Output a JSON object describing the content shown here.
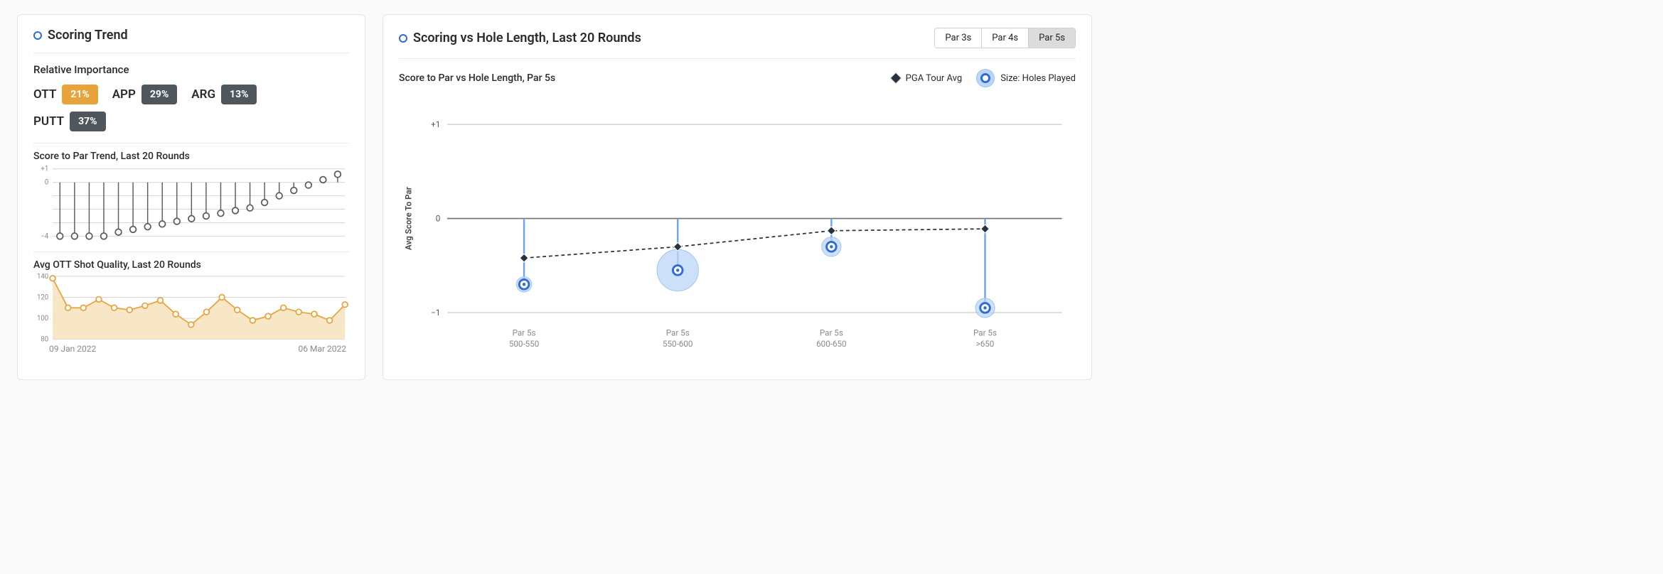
{
  "left": {
    "title": "Scoring Trend",
    "importance": {
      "label": "Relative Importance",
      "items": [
        {
          "label": "OTT",
          "value": "21%",
          "highlight": true
        },
        {
          "label": "APP",
          "value": "29%",
          "highlight": false
        },
        {
          "label": "ARG",
          "value": "13%",
          "highlight": false
        },
        {
          "label": "PUTT",
          "value": "37%",
          "highlight": false
        }
      ],
      "highlight_color": "#e8a33a",
      "default_color": "#4f565c"
    },
    "score_trend": {
      "title": "Score to Par Trend, Last 20 Rounds",
      "type": "lollipop",
      "ylim": [
        -4,
        1
      ],
      "yticks": [
        1,
        0,
        -4
      ],
      "ytick_labels": [
        "+1",
        "0",
        "−4"
      ],
      "values": [
        -4,
        -4,
        -4,
        -4,
        -3.7,
        -3.5,
        -3.3,
        -3.1,
        -2.9,
        -2.7,
        -2.5,
        -2.3,
        -2.1,
        -1.9,
        -1.5,
        -1.0,
        -0.6,
        -0.2,
        0.2,
        0.6
      ],
      "marker_stroke": "#5c5c5c",
      "stem_stroke": "#5c5c5c",
      "grid_color": "#d6d6d6",
      "tick_color": "#8a8a8a",
      "tick_fontsize": 10
    },
    "ott_quality": {
      "title": "Avg OTT Shot Quality, Last 20 Rounds",
      "type": "area-line",
      "ylim": [
        80,
        140
      ],
      "yticks": [
        140,
        120,
        100,
        80
      ],
      "values": [
        138,
        110,
        110,
        118,
        110,
        108,
        112,
        117,
        104,
        94,
        106,
        120,
        108,
        98,
        102,
        110,
        106,
        104,
        98,
        113
      ],
      "fill_color": "#f6e3bd",
      "line_color": "#e8a33a",
      "marker_stroke": "#e8a33a",
      "grid_color": "#d6d6d6",
      "tick_color": "#8a8a8a",
      "tick_fontsize": 10,
      "dates": {
        "start": "09 Jan 2022",
        "end": "06 Mar 2022"
      }
    }
  },
  "right": {
    "title": "Scoring vs Hole Length, Last 20 Rounds",
    "tabs": [
      "Par 3s",
      "Par 4s",
      "Par 5s"
    ],
    "active_tab": 2,
    "subtitle": "Score to Par vs Hole Length, Par 5s",
    "legend": {
      "avg": {
        "label": "PGA Tour Avg",
        "color": "#2a3241"
      },
      "bubble": {
        "label": "Size: Holes Played",
        "fill": "#bcd6f7",
        "stroke": "#2f6bd6"
      }
    },
    "chart": {
      "type": "bubble-lollipop",
      "y_axis_label": "Avg Score To Par",
      "ylim": [
        -1.1,
        1.1
      ],
      "yticks": [
        1,
        0,
        -1
      ],
      "ytick_labels": [
        "+1",
        "0",
        "−1"
      ],
      "grid_color": "#bdbdbd",
      "axis_color": "#6f6f6f",
      "categories": [
        {
          "label_top": "Par 5s",
          "label_bottom": "500-550",
          "player": -0.7,
          "size": 22,
          "pga": -0.42
        },
        {
          "label_top": "Par 5s",
          "label_bottom": "550-600",
          "player": -0.55,
          "size": 60,
          "pga": -0.3
        },
        {
          "label_top": "Par 5s",
          "label_bottom": "600-650",
          "player": -0.3,
          "size": 28,
          "pga": -0.13
        },
        {
          "label_top": "Par 5s",
          "label_bottom": ">650",
          "player": -0.95,
          "size": 28,
          "pga": -0.11
        }
      ],
      "dash_color": "#2a3241",
      "player_stem_color": "#6fa5e6",
      "player_fill": "#bcd6f7",
      "player_stroke": "#2f6bd6",
      "label_color": "#8a8a8a",
      "label_fontsize": 12
    }
  }
}
